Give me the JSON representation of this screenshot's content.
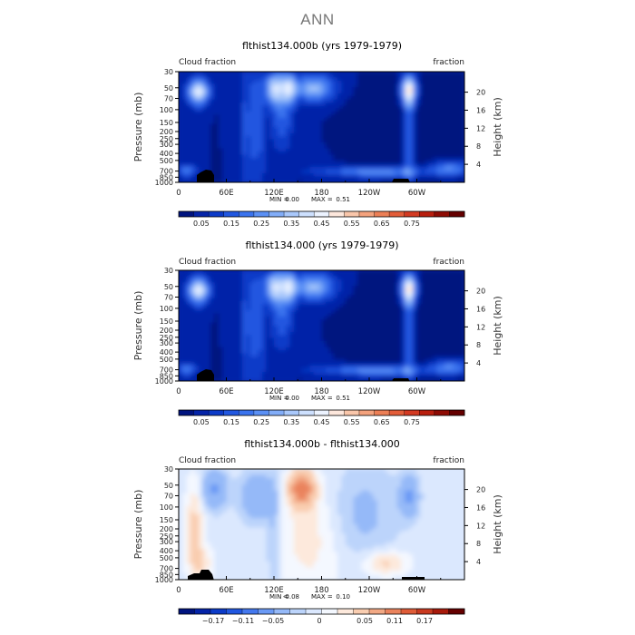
{
  "page": {
    "title": "ANN"
  },
  "chart_data": [
    {
      "type": "heatmap",
      "title": "flthist134.000b (yrs 1979-1979)",
      "label_left": "Cloud fraction",
      "label_right": "fraction",
      "ylabel": "Pressure (mb)",
      "y2label": "Height (km)",
      "x_ticks": [
        "0",
        "60E",
        "120E",
        "180",
        "120W",
        "60W"
      ],
      "y_ticks": [
        "30",
        "50",
        "70",
        "100",
        "150",
        "200",
        "250",
        "300",
        "400",
        "500",
        "700",
        "850",
        "1000"
      ],
      "y2_ticks": [
        "20",
        "16",
        "12",
        "8",
        "4"
      ],
      "stats": {
        "min_label": "MIN =",
        "min": "0.00",
        "max_label": "MAX =",
        "max": "0.51"
      },
      "colorbar": {
        "labels": [
          "0.05",
          "0.15",
          "0.25",
          "0.35",
          "0.45",
          "0.55",
          "0.65",
          "0.75"
        ],
        "colors": [
          "#00137f",
          "#0524a8",
          "#0c3bc8",
          "#2157e0",
          "#3a73ee",
          "#5b90f5",
          "#82adf8",
          "#a9c8fb",
          "#cde0fe",
          "#ecf3ff",
          "#fde7dc",
          "#f9c6aa",
          "#f4a27d",
          "#ec7f56",
          "#e35d39",
          "#d33a22",
          "#b81e0e",
          "#8e0b04",
          "#650000"
        ]
      },
      "field": "base"
    },
    {
      "type": "heatmap",
      "title": "flthist134.000 (yrs 1979-1979)",
      "label_left": "Cloud fraction",
      "label_right": "fraction",
      "ylabel": "Pressure (mb)",
      "y2label": "Height (km)",
      "x_ticks": [
        "0",
        "60E",
        "120E",
        "180",
        "120W",
        "60W"
      ],
      "y_ticks": [
        "30",
        "50",
        "70",
        "100",
        "150",
        "200",
        "250",
        "300",
        "400",
        "500",
        "700",
        "850",
        "1000"
      ],
      "y2_ticks": [
        "20",
        "16",
        "12",
        "8",
        "4"
      ],
      "stats": {
        "min_label": "MIN =",
        "min": "0.00",
        "max_label": "MAX =",
        "max": "0.51"
      },
      "colorbar": {
        "labels": [
          "0.05",
          "0.15",
          "0.25",
          "0.35",
          "0.45",
          "0.55",
          "0.65",
          "0.75"
        ],
        "colors": [
          "#00137f",
          "#0524a8",
          "#0c3bc8",
          "#2157e0",
          "#3a73ee",
          "#5b90f5",
          "#82adf8",
          "#a9c8fb",
          "#cde0fe",
          "#ecf3ff",
          "#fde7dc",
          "#f9c6aa",
          "#f4a27d",
          "#ec7f56",
          "#e35d39",
          "#d33a22",
          "#b81e0e",
          "#8e0b04",
          "#650000"
        ]
      },
      "field": "base"
    },
    {
      "type": "heatmap",
      "title": "flthist134.000b - flthist134.000",
      "label_left": "Cloud fraction",
      "label_right": "fraction",
      "ylabel": "Pressure (mb)",
      "y2label": "Height (km)",
      "x_ticks": [
        "0",
        "60E",
        "120E",
        "180",
        "120W",
        "60W"
      ],
      "y_ticks": [
        "30",
        "50",
        "70",
        "100",
        "150",
        "200",
        "250",
        "300",
        "400",
        "500",
        "700",
        "850",
        "1000"
      ],
      "y2_ticks": [
        "20",
        "16",
        "12",
        "8",
        "4"
      ],
      "stats": {
        "min_label": "MIN =",
        "min": "-0.08",
        "max_label": "MAX =",
        "max": "0.10"
      },
      "colorbar": {
        "labels": [
          "−0.17",
          "−0.11",
          "−0.05",
          "0",
          "0.05",
          "0.11",
          "0.17"
        ],
        "colors": [
          "#00137f",
          "#0524a8",
          "#0c3bc8",
          "#2157e0",
          "#4478ee",
          "#6b9af5",
          "#95b9f8",
          "#bcd4fb",
          "#dbe8fe",
          "#f4f8ff",
          "#fde9dc",
          "#f9cdb0",
          "#f2a985",
          "#ea835d",
          "#df5c38",
          "#c93a20",
          "#a81a0b",
          "#650000"
        ]
      },
      "field": "diff"
    }
  ]
}
